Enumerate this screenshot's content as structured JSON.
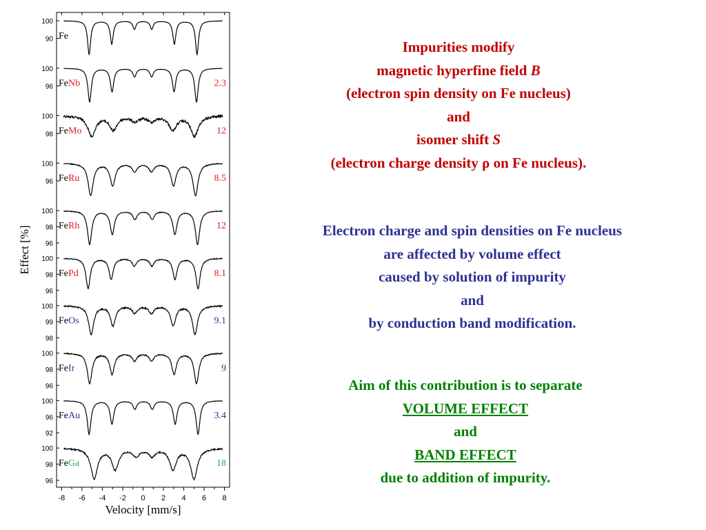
{
  "chart_data": {
    "type": "line",
    "xlabel": "Velocity [mm/s]",
    "ylabel": "Effect [%]",
    "xlim": [
      -8.5,
      8.5
    ],
    "x_ticks": [
      "-8",
      "-6",
      "-4",
      "-2",
      "0",
      "2",
      "4",
      "6",
      "8"
    ],
    "grid": false,
    "panels": [
      {
        "name_base": "Fe",
        "name_impurity": "",
        "impurity_color": "#000000",
        "value": "",
        "value_color": "#000000",
        "yticks": [
          "100",
          "90"
        ],
        "field": 5.3,
        "shift": 0.0,
        "width": 0.18,
        "noise": 0.0025,
        "depth": 1.0
      },
      {
        "name_base": "Fe",
        "name_impurity": "Nb",
        "impurity_color": "#e31a1c",
        "value": "2.3",
        "value_color": "#e31a1c",
        "yticks": [
          "100",
          "96"
        ],
        "field": 5.25,
        "shift": 0.0,
        "width": 0.2,
        "noise": 0.004,
        "depth": 1.0
      },
      {
        "name_base": "Fe",
        "name_impurity": "Mo",
        "impurity_color": "#e31a1c",
        "value": "12",
        "value_color": "#e31a1c",
        "yticks": [
          "100",
          "98"
        ],
        "field": 5.05,
        "shift": 0.0,
        "width": 0.45,
        "noise": 0.035,
        "depth": 0.6
      },
      {
        "name_base": "Fe",
        "name_impurity": "Ru",
        "impurity_color": "#e31a1c",
        "value": "8.5",
        "value_color": "#e31a1c",
        "yticks": [
          "100",
          "96"
        ],
        "field": 5.15,
        "shift": 0.0,
        "width": 0.3,
        "noise": 0.012,
        "depth": 0.95
      },
      {
        "name_base": "Fe",
        "name_impurity": "Rh",
        "impurity_color": "#e31a1c",
        "value": "12",
        "value_color": "#e31a1c",
        "yticks": [
          "100",
          "98",
          "96"
        ],
        "field": 5.3,
        "shift": 0.05,
        "width": 0.25,
        "noise": 0.01,
        "depth": 1.0
      },
      {
        "name_base": "Fe",
        "name_impurity": "Pd",
        "impurity_color": "#e31a1c",
        "value": "8.1",
        "value_color": "#e31a1c",
        "yticks": [
          "100",
          "98",
          "96"
        ],
        "field": 5.4,
        "shift": 0.0,
        "width": 0.25,
        "noise": 0.012,
        "depth": 0.9
      },
      {
        "name_base": "Fe",
        "name_impurity": "Os",
        "impurity_color": "#2e3192",
        "value": "9.1",
        "value_color": "#2e3192",
        "yticks": [
          "100",
          "99",
          "98"
        ],
        "field": 5.1,
        "shift": 0.0,
        "width": 0.3,
        "noise": 0.02,
        "depth": 0.85
      },
      {
        "name_base": "Fe",
        "name_impurity": "Ir",
        "impurity_color": "#2e3192",
        "value": "9",
        "value_color": "#2e3192",
        "yticks": [
          "100",
          "98",
          "96"
        ],
        "field": 5.25,
        "shift": 0.0,
        "width": 0.27,
        "noise": 0.015,
        "depth": 0.9
      },
      {
        "name_base": "Fe",
        "name_impurity": "Au",
        "impurity_color": "#2e3192",
        "value": "3.4",
        "value_color": "#2e3192",
        "yticks": [
          "100",
          "96",
          "92"
        ],
        "field": 5.35,
        "shift": 0.05,
        "width": 0.22,
        "noise": 0.006,
        "depth": 1.0
      },
      {
        "name_base": "Fe",
        "name_impurity": "Ga",
        "impurity_color": "#22b14c",
        "value": "18",
        "value_color": "#22b14c",
        "yticks": [
          "100",
          "98",
          "96"
        ],
        "field": 4.9,
        "shift": 0.1,
        "width": 0.4,
        "noise": 0.02,
        "depth": 0.9
      }
    ]
  },
  "red_text": {
    "line1": "Impurities modify",
    "line2a": "magnetic hyperfine field ",
    "line2b": "B",
    "line3": "(electron spin density on Fe nucleus)",
    "line4": "and",
    "line5a": "isomer shift ",
    "line5b": "S",
    "line6": "(electron charge density ρ on Fe nucleus)."
  },
  "blue_text": {
    "line1": "Electron charge and spin densities on Fe nucleus",
    "line2": "are affected by volume effect",
    "line3": "caused by solution of impurity",
    "line4": "and",
    "line5": "by conduction band modification."
  },
  "green_text": {
    "line1": "Aim of this contribution is to separate",
    "line2": "VOLUME EFFECT",
    "line3": "and",
    "line4": "BAND EFFECT",
    "line5": "due to addition of impurity."
  }
}
